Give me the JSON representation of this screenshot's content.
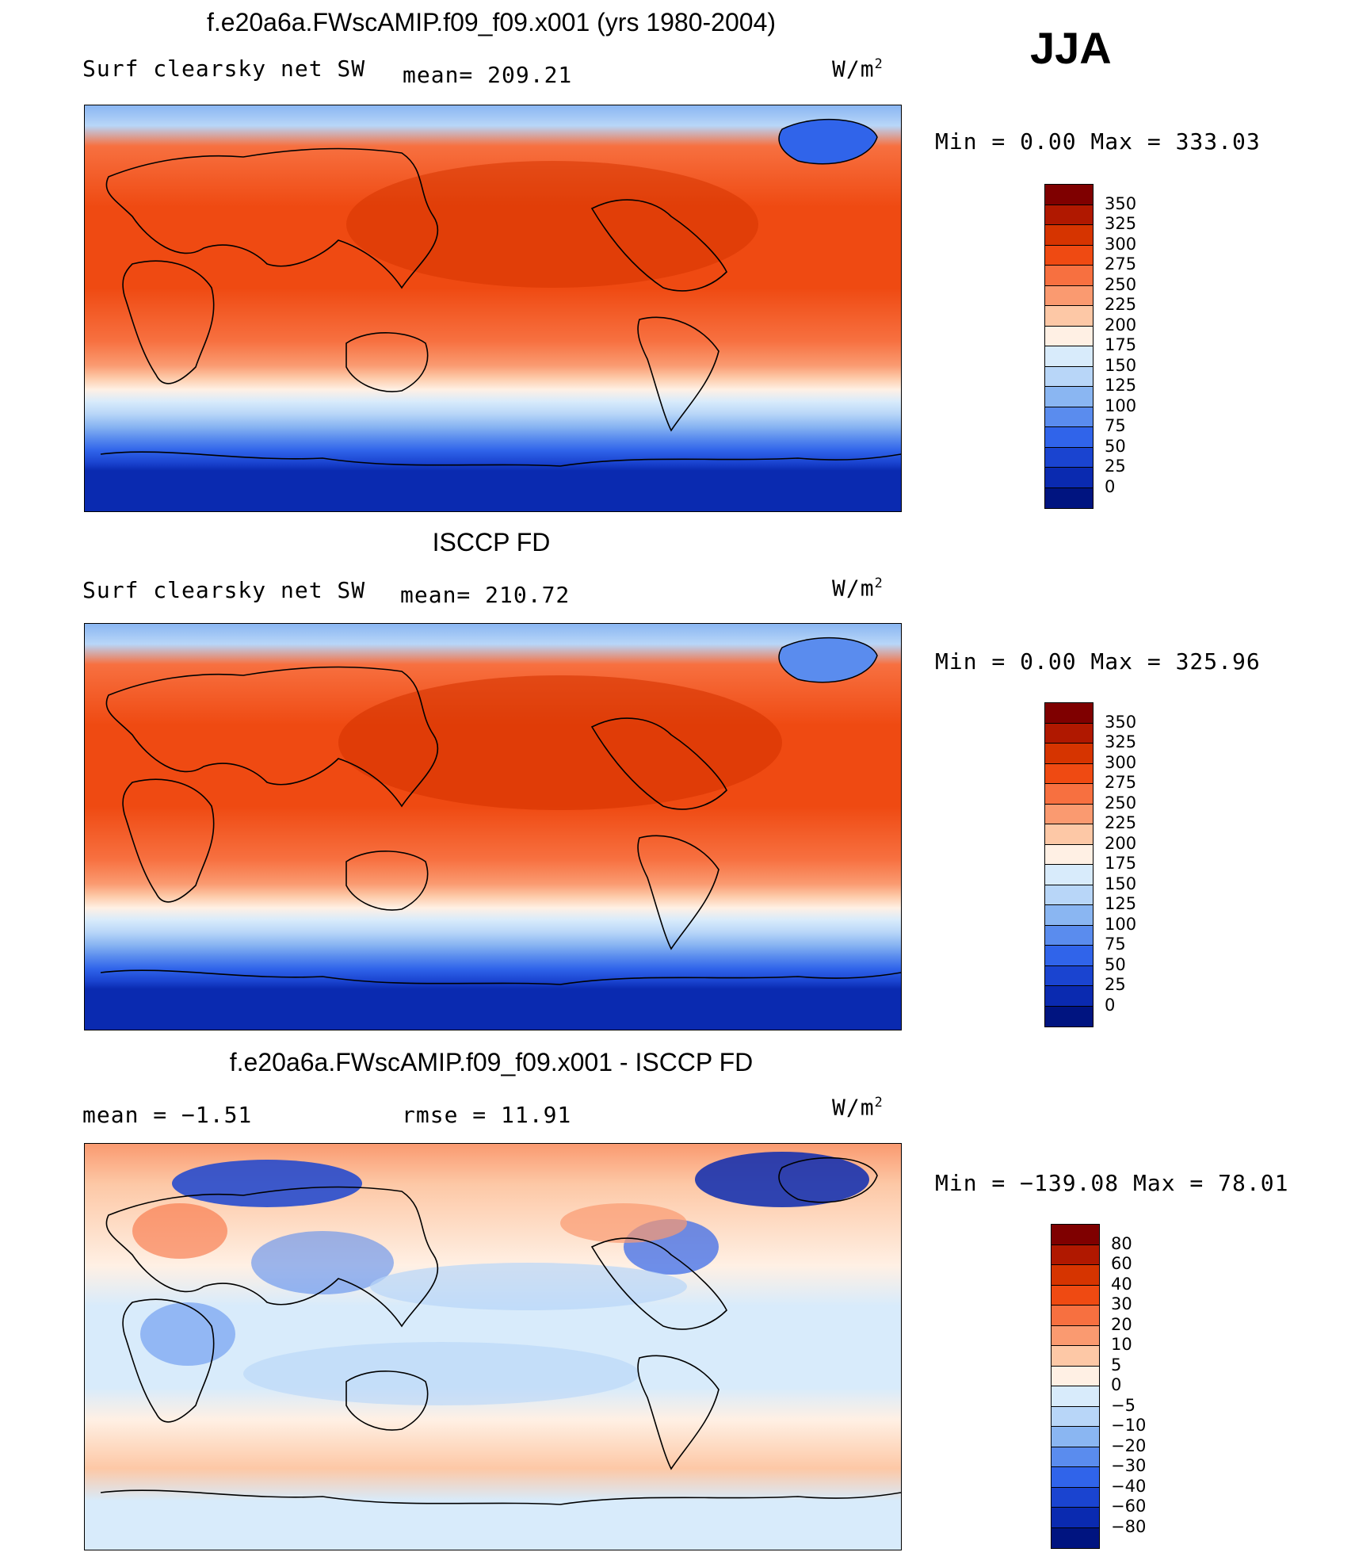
{
  "season": "JJA",
  "panels": [
    {
      "title": "f.e20a6a.FWscAMIP.f09_f09.x001 (yrs 1980-2004)",
      "variable": "Surf clearsky net SW",
      "stat_text": "mean= 209.21",
      "units_base": "W/m",
      "units_sup": "2",
      "minmax": "Min =    0.00 Max = 333.03",
      "colorbar_labels": [
        "350",
        "325",
        "300",
        "275",
        "250",
        "225",
        "200",
        "175",
        "150",
        "125",
        "100",
        "75",
        "50",
        "25",
        "0"
      ]
    },
    {
      "title": "ISCCP FD",
      "variable": "Surf clearsky net SW",
      "stat_text": "mean= 210.72",
      "units_base": "W/m",
      "units_sup": "2",
      "minmax": "Min =    0.00 Max = 325.96",
      "colorbar_labels": [
        "350",
        "325",
        "300",
        "275",
        "250",
        "225",
        "200",
        "175",
        "150",
        "125",
        "100",
        "75",
        "50",
        "25",
        "0"
      ]
    },
    {
      "title": "f.e20a6a.FWscAMIP.f09_f09.x001 - ISCCP FD",
      "stat_left": "mean =   −1.51",
      "stat_mid": "rmse =   11.91",
      "units_base": "W/m",
      "units_sup": "2",
      "minmax": "Min = −139.08 Max =   78.01",
      "colorbar_labels": [
        "80",
        "60",
        "40",
        "30",
        "20",
        "10",
        "5",
        "0",
        "−5",
        "−10",
        "−20",
        "−30",
        "−40",
        "−60",
        "−80"
      ]
    }
  ],
  "colors": {
    "abs_scale": [
      "#7f0000",
      "#b01800",
      "#d63400",
      "#ef4a12",
      "#f77040",
      "#fa9a70",
      "#fdc8a6",
      "#fff0e4",
      "#d8ebfb",
      "#b8d6f8",
      "#8ab6f2",
      "#5a8cee",
      "#3064ea",
      "#1a44d0",
      "#0a2ab0",
      "#001480"
    ],
    "diff_scale": [
      "#7f0000",
      "#b01800",
      "#d63400",
      "#ef4a12",
      "#f77040",
      "#fa9a70",
      "#fdc8a6",
      "#fff0e4",
      "#d8ebfb",
      "#b8d6f8",
      "#8ab6f2",
      "#5a8cee",
      "#3064ea",
      "#1a44d0",
      "#0a2ab0",
      "#001480"
    ]
  }
}
